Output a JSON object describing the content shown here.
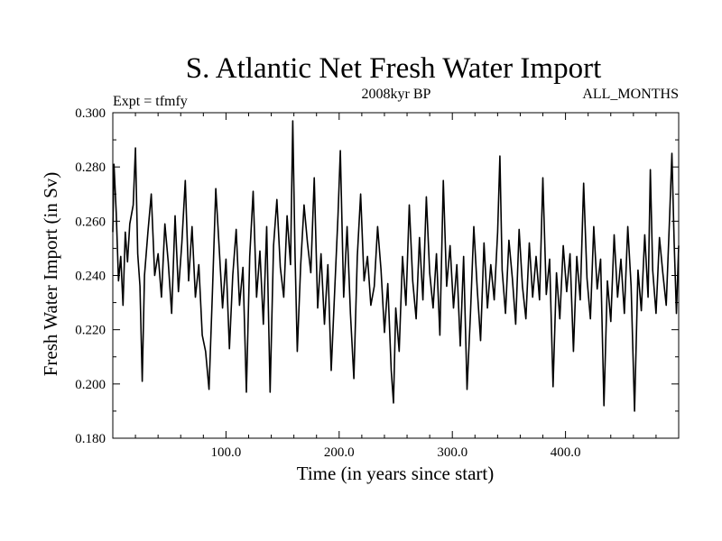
{
  "chart_data": {
    "type": "line",
    "title": "S. Atlantic Net Fresh Water Import",
    "subtitle": "2008kyr BP",
    "experiment_label": "Expt = tfmfy",
    "period_label": "ALL_MONTHS",
    "xlabel": "Time (in years since start)",
    "ylabel": "Fresh Water Import (in Sv)",
    "xlim": [
      0,
      500
    ],
    "ylim": [
      0.18,
      0.3
    ],
    "grid": false,
    "x_ticks": [
      100,
      200,
      300,
      400
    ],
    "x_tick_labels": [
      "100.0",
      "200.0",
      "300.0",
      "400.0"
    ],
    "y_ticks": [
      0.18,
      0.2,
      0.22,
      0.24,
      0.26,
      0.28,
      0.3
    ],
    "y_tick_labels": [
      "0.180",
      "0.200",
      "0.220",
      "0.240",
      "0.260",
      "0.280",
      "0.300"
    ],
    "series": [
      {
        "name": "fresh water import",
        "line_color": "#000000",
        "points": [
          [
            0,
            0.256
          ],
          [
            1,
            0.281
          ],
          [
            3,
            0.263
          ],
          [
            5,
            0.238
          ],
          [
            7,
            0.247
          ],
          [
            9,
            0.229
          ],
          [
            11,
            0.256
          ],
          [
            13,
            0.245
          ],
          [
            15,
            0.259
          ],
          [
            18,
            0.266
          ],
          [
            20,
            0.287
          ],
          [
            22,
            0.248
          ],
          [
            24,
            0.236
          ],
          [
            26,
            0.201
          ],
          [
            28,
            0.24
          ],
          [
            31,
            0.256
          ],
          [
            34,
            0.27
          ],
          [
            37,
            0.24
          ],
          [
            40,
            0.248
          ],
          [
            43,
            0.232
          ],
          [
            46,
            0.259
          ],
          [
            49,
            0.245
          ],
          [
            52,
            0.226
          ],
          [
            55,
            0.262
          ],
          [
            58,
            0.234
          ],
          [
            61,
            0.252
          ],
          [
            64,
            0.275
          ],
          [
            67,
            0.238
          ],
          [
            70,
            0.258
          ],
          [
            73,
            0.232
          ],
          [
            76,
            0.244
          ],
          [
            79,
            0.218
          ],
          [
            82,
            0.212
          ],
          [
            85,
            0.198
          ],
          [
            88,
            0.234
          ],
          [
            91,
            0.272
          ],
          [
            94,
            0.25
          ],
          [
            97,
            0.228
          ],
          [
            100,
            0.246
          ],
          [
            103,
            0.213
          ],
          [
            106,
            0.24
          ],
          [
            109,
            0.257
          ],
          [
            112,
            0.229
          ],
          [
            115,
            0.243
          ],
          [
            118,
            0.197
          ],
          [
            121,
            0.247
          ],
          [
            124,
            0.271
          ],
          [
            127,
            0.232
          ],
          [
            130,
            0.249
          ],
          [
            133,
            0.222
          ],
          [
            136,
            0.258
          ],
          [
            139,
            0.197
          ],
          [
            142,
            0.251
          ],
          [
            145,
            0.268
          ],
          [
            148,
            0.243
          ],
          [
            151,
            0.232
          ],
          [
            154,
            0.262
          ],
          [
            157,
            0.244
          ],
          [
            159,
            0.297
          ],
          [
            161,
            0.248
          ],
          [
            163,
            0.212
          ],
          [
            166,
            0.244
          ],
          [
            169,
            0.266
          ],
          [
            172,
            0.252
          ],
          [
            175,
            0.241
          ],
          [
            178,
            0.276
          ],
          [
            181,
            0.228
          ],
          [
            184,
            0.248
          ],
          [
            187,
            0.222
          ],
          [
            190,
            0.244
          ],
          [
            193,
            0.205
          ],
          [
            196,
            0.234
          ],
          [
            199,
            0.262
          ],
          [
            201,
            0.286
          ],
          [
            204,
            0.232
          ],
          [
            207,
            0.258
          ],
          [
            210,
            0.226
          ],
          [
            213,
            0.202
          ],
          [
            216,
            0.247
          ],
          [
            219,
            0.27
          ],
          [
            222,
            0.238
          ],
          [
            225,
            0.247
          ],
          [
            228,
            0.229
          ],
          [
            231,
            0.236
          ],
          [
            234,
            0.258
          ],
          [
            237,
            0.242
          ],
          [
            240,
            0.219
          ],
          [
            243,
            0.237
          ],
          [
            246,
            0.205
          ],
          [
            248,
            0.193
          ],
          [
            250,
            0.228
          ],
          [
            253,
            0.212
          ],
          [
            256,
            0.247
          ],
          [
            259,
            0.229
          ],
          [
            262,
            0.266
          ],
          [
            265,
            0.238
          ],
          [
            268,
            0.224
          ],
          [
            271,
            0.254
          ],
          [
            274,
            0.231
          ],
          [
            277,
            0.269
          ],
          [
            280,
            0.241
          ],
          [
            283,
            0.228
          ],
          [
            286,
            0.248
          ],
          [
            289,
            0.218
          ],
          [
            292,
            0.275
          ],
          [
            295,
            0.236
          ],
          [
            298,
            0.251
          ],
          [
            301,
            0.228
          ],
          [
            304,
            0.244
          ],
          [
            307,
            0.214
          ],
          [
            310,
            0.247
          ],
          [
            313,
            0.198
          ],
          [
            316,
            0.226
          ],
          [
            319,
            0.258
          ],
          [
            322,
            0.235
          ],
          [
            325,
            0.216
          ],
          [
            328,
            0.252
          ],
          [
            331,
            0.228
          ],
          [
            334,
            0.244
          ],
          [
            337,
            0.231
          ],
          [
            340,
            0.256
          ],
          [
            342,
            0.284
          ],
          [
            344,
            0.242
          ],
          [
            347,
            0.226
          ],
          [
            350,
            0.253
          ],
          [
            353,
            0.239
          ],
          [
            356,
            0.222
          ],
          [
            359,
            0.257
          ],
          [
            362,
            0.236
          ],
          [
            365,
            0.224
          ],
          [
            368,
            0.252
          ],
          [
            371,
            0.232
          ],
          [
            374,
            0.247
          ],
          [
            377,
            0.231
          ],
          [
            380,
            0.276
          ],
          [
            383,
            0.233
          ],
          [
            386,
            0.246
          ],
          [
            389,
            0.199
          ],
          [
            392,
            0.241
          ],
          [
            395,
            0.224
          ],
          [
            398,
            0.251
          ],
          [
            401,
            0.234
          ],
          [
            404,
            0.248
          ],
          [
            407,
            0.212
          ],
          [
            410,
            0.247
          ],
          [
            413,
            0.231
          ],
          [
            416,
            0.274
          ],
          [
            419,
            0.239
          ],
          [
            422,
            0.224
          ],
          [
            425,
            0.258
          ],
          [
            428,
            0.235
          ],
          [
            431,
            0.246
          ],
          [
            434,
            0.192
          ],
          [
            437,
            0.238
          ],
          [
            440,
            0.223
          ],
          [
            443,
            0.255
          ],
          [
            446,
            0.232
          ],
          [
            449,
            0.246
          ],
          [
            452,
            0.226
          ],
          [
            455,
            0.258
          ],
          [
            458,
            0.236
          ],
          [
            461,
            0.19
          ],
          [
            464,
            0.242
          ],
          [
            467,
            0.227
          ],
          [
            470,
            0.255
          ],
          [
            473,
            0.232
          ],
          [
            475,
            0.279
          ],
          [
            477,
            0.242
          ],
          [
            480,
            0.226
          ],
          [
            483,
            0.254
          ],
          [
            486,
            0.241
          ],
          [
            489,
            0.229
          ],
          [
            492,
            0.262
          ],
          [
            494,
            0.285
          ],
          [
            496,
            0.252
          ],
          [
            498,
            0.226
          ],
          [
            500,
            0.251
          ]
        ]
      }
    ]
  }
}
